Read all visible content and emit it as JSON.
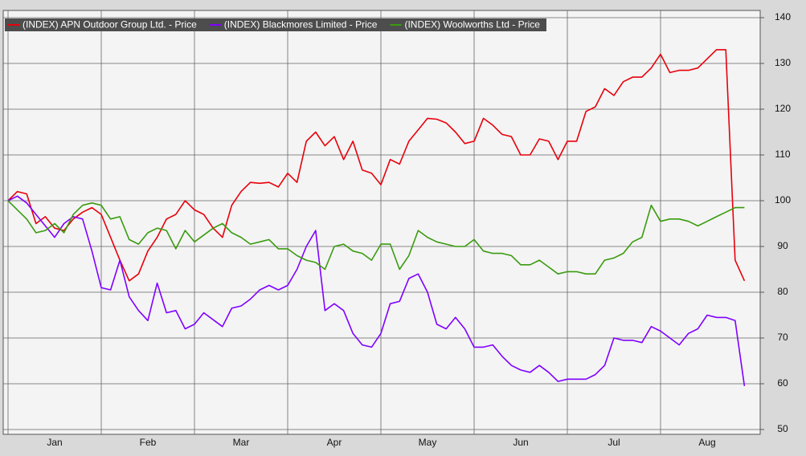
{
  "chart_data": {
    "type": "line",
    "categories": [
      null,
      null,
      null,
      null,
      null,
      "Jan",
      null,
      null,
      null,
      null,
      null,
      null,
      null,
      null,
      null,
      "Feb",
      null,
      null,
      null,
      null,
      null,
      null,
      null,
      null,
      null,
      "Mar",
      null,
      null,
      null,
      null,
      null,
      null,
      null,
      null,
      null,
      "Apr",
      null,
      null,
      null,
      null,
      null,
      null,
      null,
      null,
      null,
      "May",
      null,
      null,
      null,
      null,
      null,
      null,
      null,
      null,
      null,
      "Jun",
      null,
      null,
      null,
      null,
      null,
      null,
      null,
      null,
      null,
      "Jul",
      null,
      null,
      null,
      null,
      null,
      null,
      null,
      null,
      null,
      "Aug",
      null,
      null,
      null,
      null
    ],
    "series": [
      {
        "name": "(INDEX) APN Outdoor Group Ltd. - Price",
        "color": "#e8000b",
        "values": [
          100,
          102,
          101.5,
          95,
          96.5,
          94,
          93.5,
          96,
          97.5,
          98.5,
          97,
          92,
          87,
          82.5,
          84,
          89,
          92,
          96,
          97,
          100,
          98,
          97,
          94,
          92,
          99,
          102,
          104,
          103.8,
          104,
          103,
          106,
          104,
          113,
          115,
          112,
          114,
          109,
          113,
          106.7,
          106,
          103.5,
          109,
          108,
          113,
          115.5,
          118,
          117.8,
          117,
          115,
          112.5,
          113,
          118,
          116.5,
          114.5,
          114,
          110,
          110,
          113.5,
          113,
          109,
          113,
          113,
          119.5,
          120.5,
          124.5,
          123,
          126,
          127,
          127,
          129,
          132,
          128,
          128.5,
          128.5,
          129,
          131,
          133,
          133,
          87,
          82.5
        ]
      },
      {
        "name": "(INDEX) Blackmores Limited - Price",
        "color": "#8000ff",
        "values": [
          100,
          101,
          99.5,
          97,
          94.5,
          92,
          95,
          96.5,
          96,
          89,
          81,
          80.5,
          87,
          79,
          76,
          73.8,
          82,
          75.5,
          76,
          72,
          73,
          75.5,
          74,
          72.5,
          76.5,
          77,
          78.5,
          80.5,
          81.5,
          80.5,
          81.5,
          85,
          90,
          93.5,
          76,
          77.5,
          76,
          71,
          68.5,
          68,
          71,
          77.5,
          78,
          83,
          84,
          80,
          73,
          72,
          74.5,
          72,
          68,
          68,
          68.5,
          66,
          64,
          63,
          62.5,
          64,
          62.5,
          60.5,
          61,
          61,
          61,
          62,
          64,
          70,
          69.5,
          69.5,
          69,
          72.5,
          71.5,
          70,
          68.5,
          71,
          72,
          75,
          74.5,
          74.5,
          73.8,
          59.5
        ]
      },
      {
        "name": "(INDEX) Woolworths Ltd - Price",
        "color": "#3a9b0f",
        "values": [
          100,
          98,
          96,
          93,
          93.5,
          95,
          93,
          97,
          99,
          99.5,
          99,
          96,
          96.5,
          91.5,
          90.5,
          93,
          94,
          93.5,
          89.5,
          93.5,
          91,
          92.5,
          94,
          95,
          93,
          92,
          90.5,
          91,
          91.5,
          89.5,
          89.5,
          88,
          87,
          86.5,
          85,
          90,
          90.5,
          89,
          88.5,
          87,
          90.5,
          90.5,
          85,
          88,
          93.5,
          92,
          91,
          90.5,
          90,
          90,
          91.5,
          89,
          88.5,
          88.5,
          88,
          86,
          86,
          87,
          85.5,
          84,
          84.5,
          84.5,
          84,
          84,
          87,
          87.5,
          88.5,
          91,
          92,
          99,
          95.5,
          96,
          96,
          95.5,
          94.5,
          95.5,
          96.5,
          97.5,
          98.5,
          98.5
        ]
      }
    ],
    "ylim": [
      50,
      140
    ],
    "yticks": [
      50,
      60,
      70,
      80,
      90,
      100,
      110,
      120,
      130,
      140
    ],
    "y_axis_side": "right",
    "grid": true,
    "legend": "top-left"
  }
}
